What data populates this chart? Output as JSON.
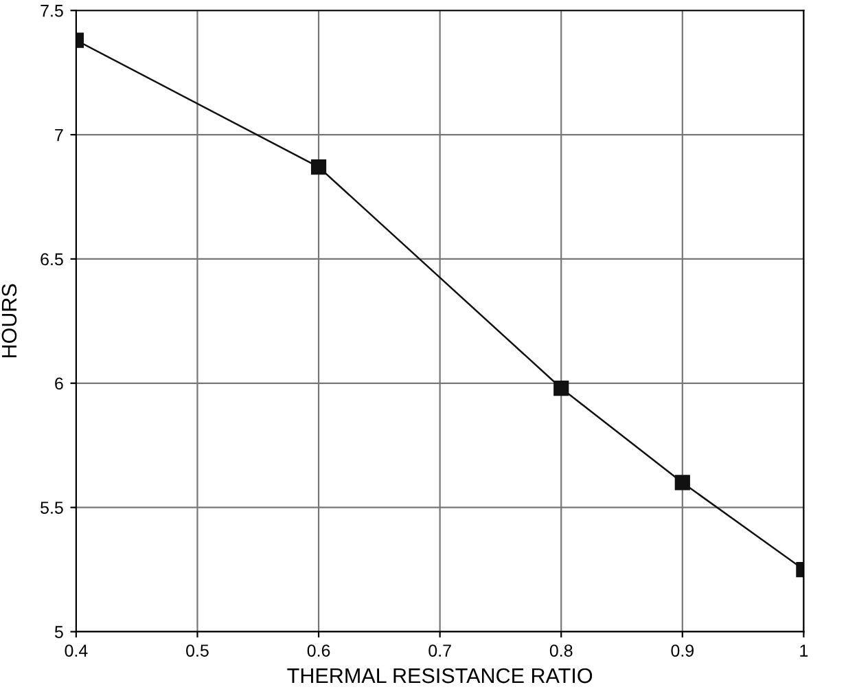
{
  "chart_data": {
    "type": "line",
    "xlabel": "THERMAL RESISTANCE RATIO",
    "ylabel": "HOURS",
    "x": [
      0.4,
      0.6,
      0.8,
      0.9,
      1.0
    ],
    "series": [
      {
        "color": "#111111",
        "values": [
          7.38,
          6.87,
          5.98,
          5.6,
          5.25
        ]
      }
    ],
    "xlim": [
      0.4,
      1.0
    ],
    "xticks": [
      0.4,
      0.5,
      0.6,
      0.7,
      0.8,
      0.9,
      1
    ],
    "ylim": [
      5,
      7.5
    ],
    "yticks": [
      5,
      5.5,
      6,
      6.5,
      7,
      7.5
    ],
    "grid": true,
    "marker": "square",
    "line_style": "solid"
  }
}
